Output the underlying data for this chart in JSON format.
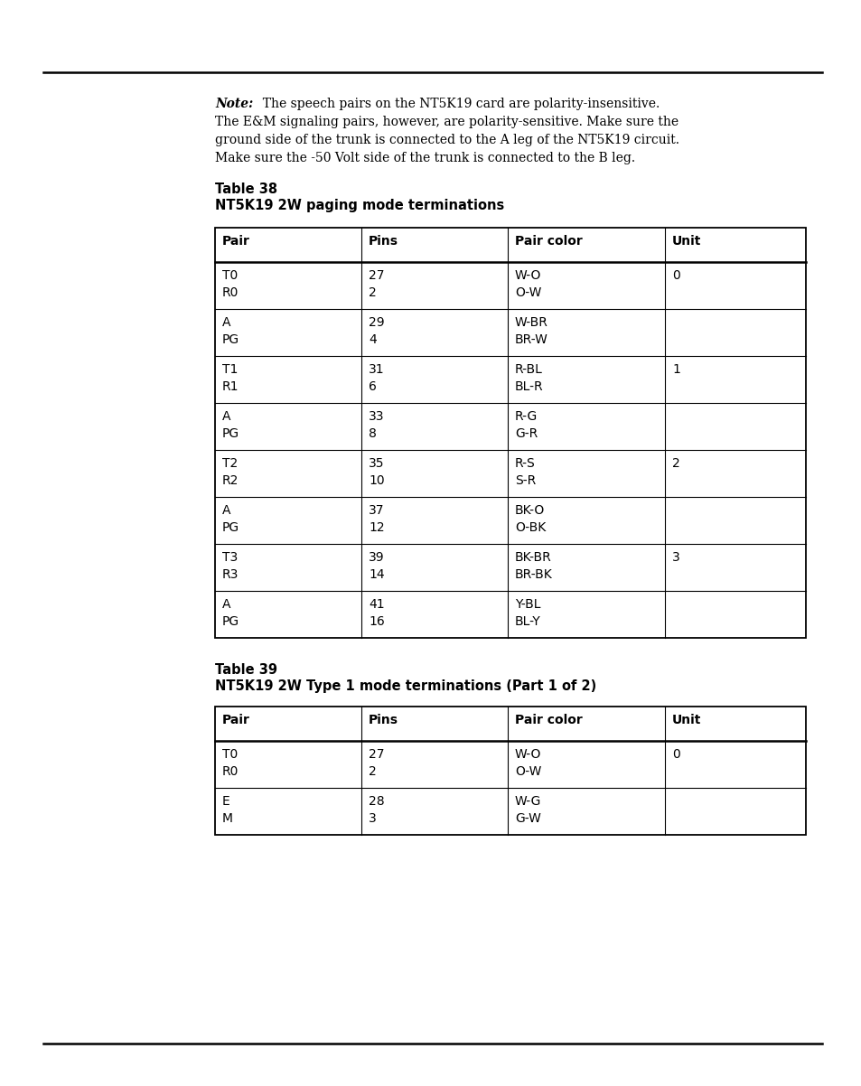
{
  "background_color": "#ffffff",
  "page_width": 9.54,
  "page_height": 12.02,
  "text_color": "#000000",
  "note_label": "Note:",
  "note_lines": [
    "  The speech pairs on the NT5K19 card are polarity-insensitive.",
    "The E&M signaling pairs, however, are polarity-sensitive. Make sure the",
    "ground side of the trunk is connected to the A leg of the NT5K19 circuit.",
    "Make sure the -50 Volt side of the trunk is connected to the B leg."
  ],
  "table38_label": "Table 38",
  "table38_title": "NT5K19 2W paging mode terminations",
  "table38_headers": [
    "Pair",
    "Pins",
    "Pair color",
    "Unit"
  ],
  "table38_rows": [
    [
      "T0\nR0",
      "27\n2",
      "W-O\nO-W",
      "0"
    ],
    [
      "A\nPG",
      "29\n4",
      "W-BR\nBR-W",
      ""
    ],
    [
      "T1\nR1",
      "31\n6",
      "R-BL\nBL-R",
      "1"
    ],
    [
      "A\nPG",
      "33\n8",
      "R-G\nG-R",
      ""
    ],
    [
      "T2\nR2",
      "35\n10",
      "R-S\nS-R",
      "2"
    ],
    [
      "A\nPG",
      "37\n12",
      "BK-O\nO-BK",
      ""
    ],
    [
      "T3\nR3",
      "39\n14",
      "BK-BR\nBR-BK",
      "3"
    ],
    [
      "A\nPG",
      "41\n16",
      "Y-BL\nBL-Y",
      ""
    ]
  ],
  "table39_label": "Table 39",
  "table39_title": "NT5K19 2W Type 1 mode terminations (Part 1 of 2)",
  "table39_headers": [
    "Pair",
    "Pins",
    "Pair color",
    "Unit"
  ],
  "table39_rows": [
    [
      "T0\nR0",
      "27\n2",
      "W-O\nO-W",
      "0"
    ],
    [
      "E\nM",
      "28\n3",
      "W-G\nG-W",
      ""
    ]
  ]
}
